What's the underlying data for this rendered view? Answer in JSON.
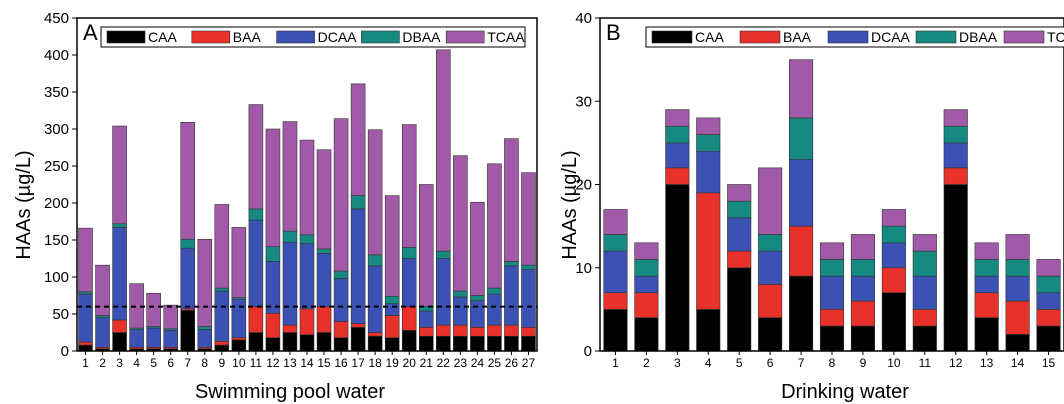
{
  "chart_data": [
    {
      "type": "bar",
      "stacked": true,
      "panel_label": "A",
      "xlabel": "Swimming pool water",
      "ylabel": "HAAs (µg/L)",
      "ylim": [
        0,
        450
      ],
      "yticks": [
        0,
        50,
        100,
        150,
        200,
        250,
        300,
        350,
        400,
        450
      ],
      "categories": [
        "1",
        "2",
        "3",
        "4",
        "5",
        "6",
        "7",
        "8",
        "9",
        "10",
        "11",
        "12",
        "13",
        "14",
        "15",
        "16",
        "17",
        "18",
        "19",
        "20",
        "21",
        "22",
        "23",
        "24",
        "25",
        "26",
        "27"
      ],
      "reference_line": 60,
      "legend_position": "top",
      "series": [
        {
          "name": "CAA",
          "color": "#000000",
          "values": [
            8,
            3,
            25,
            3,
            3,
            3,
            55,
            3,
            8,
            15,
            25,
            18,
            25,
            22,
            25,
            18,
            32,
            20,
            18,
            28,
            20,
            20,
            20,
            20,
            20,
            20,
            20
          ]
        },
        {
          "name": "BAA",
          "color": "#e8312a",
          "values": [
            4,
            2,
            17,
            2,
            2,
            2,
            2,
            2,
            5,
            3,
            35,
            33,
            10,
            35,
            35,
            22,
            5,
            5,
            30,
            32,
            12,
            15,
            15,
            12,
            15,
            15,
            12
          ]
        },
        {
          "name": "DCAA",
          "color": "#3b52b4",
          "values": [
            65,
            40,
            125,
            24,
            26,
            23,
            82,
            24,
            68,
            52,
            117,
            70,
            112,
            88,
            72,
            58,
            155,
            90,
            16,
            65,
            22,
            90,
            38,
            36,
            42,
            80,
            78
          ]
        },
        {
          "name": "DBAA",
          "color": "#168a80",
          "values": [
            3,
            3,
            5,
            2,
            2,
            2,
            12,
            4,
            4,
            2,
            15,
            20,
            15,
            12,
            6,
            10,
            18,
            15,
            10,
            15,
            6,
            10,
            8,
            7,
            8,
            6,
            6
          ]
        },
        {
          "name": "TCAA",
          "color": "#a15aa8",
          "values": [
            86,
            68,
            132,
            60,
            45,
            32,
            158,
            118,
            113,
            95,
            141,
            159,
            148,
            128,
            134,
            206,
            151,
            169,
            136,
            166,
            165,
            272,
            183,
            126,
            168,
            166,
            125
          ]
        }
      ]
    },
    {
      "type": "bar",
      "stacked": true,
      "panel_label": "B",
      "xlabel": "Drinking water",
      "ylabel": "HAAs (µg/L)",
      "ylim": [
        0,
        40
      ],
      "yticks": [
        0,
        10,
        20,
        30,
        40
      ],
      "categories": [
        "1",
        "2",
        "3",
        "4",
        "5",
        "6",
        "7",
        "8",
        "9",
        "10",
        "11",
        "12",
        "13",
        "14",
        "15"
      ],
      "legend_position": "top",
      "series": [
        {
          "name": "CAA",
          "color": "#000000",
          "values": [
            5,
            4,
            20,
            5,
            10,
            4,
            9,
            3,
            3,
            7,
            3,
            20,
            4,
            2,
            3
          ]
        },
        {
          "name": "BAA",
          "color": "#e8312a",
          "values": [
            2,
            3,
            2,
            14,
            2,
            4,
            6,
            2,
            3,
            3,
            2,
            2,
            3,
            4,
            2
          ]
        },
        {
          "name": "DCAA",
          "color": "#3b52b4",
          "values": [
            5,
            2,
            3,
            5,
            4,
            4,
            8,
            4,
            3,
            3,
            4,
            3,
            2,
            3,
            2
          ]
        },
        {
          "name": "DBAA",
          "color": "#168a80",
          "values": [
            2,
            2,
            2,
            2,
            2,
            2,
            5,
            2,
            2,
            2,
            3,
            2,
            2,
            2,
            2
          ]
        },
        {
          "name": "TCAA",
          "color": "#a15aa8",
          "values": [
            3,
            2,
            2,
            2,
            2,
            8,
            7,
            2,
            3,
            2,
            2,
            2,
            2,
            3,
            2
          ]
        }
      ]
    }
  ]
}
